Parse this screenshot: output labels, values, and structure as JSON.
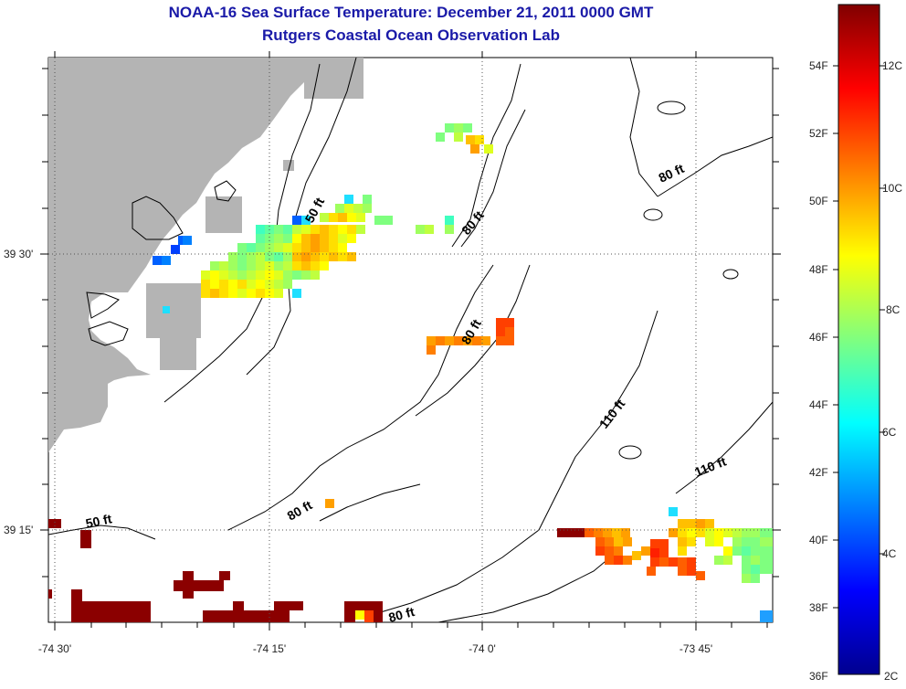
{
  "header": {
    "title": "NOAA-16 Sea Surface Temperature:  December 21, 2011 0000 GMT",
    "subtitle": "Rutgers Coastal Ocean Observation Lab"
  },
  "map": {
    "lat_labels": [
      "39 30'",
      "39 15'"
    ],
    "lon_labels": [
      "-74 30'",
      "-74 15'",
      "-74 0'",
      "-73 45'"
    ],
    "depth_labels": [
      "50 ft",
      "80 ft",
      "80 ft",
      "80 ft",
      "110 ft",
      "110 ft",
      "80 ft",
      "50 ft",
      "80 ft"
    ]
  },
  "colorbar": {
    "fahrenheit": [
      "54F",
      "52F",
      "50F",
      "48F",
      "46F",
      "44F",
      "42F",
      "40F",
      "38F",
      "36F"
    ],
    "celsius": [
      "12C",
      "10C",
      "8C",
      "6C",
      "4C",
      "2C"
    ]
  },
  "colors": {
    "title": "#1a1aa8",
    "land": "#b4b4b4",
    "dark_red": "#8b0000"
  }
}
